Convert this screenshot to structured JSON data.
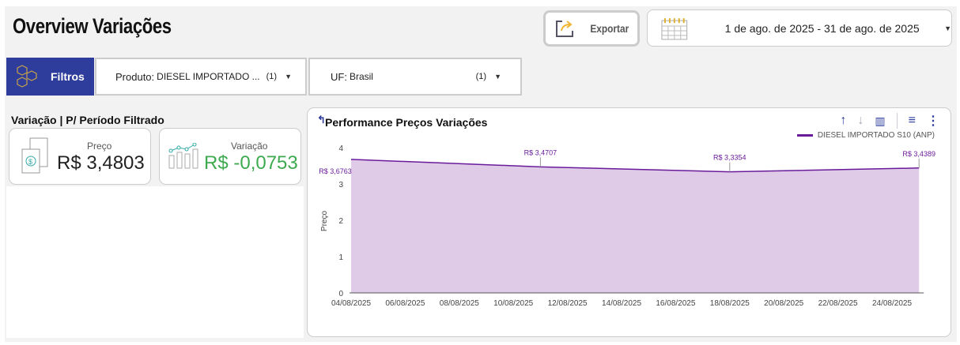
{
  "header": {
    "title": "Overview Variações",
    "export_label": "Exportar",
    "date_range": "1 de ago. de 2025 - 31 de ago. de 2025"
  },
  "filters": {
    "label": "Filtros",
    "produto": {
      "key": "Produto:",
      "value": "DIESEL IMPORTADO ...",
      "count": "(1)"
    },
    "uf": {
      "key": "UF:",
      "value": "Brasil",
      "count": "(1)"
    }
  },
  "summary": {
    "title": "Variação | P/ Período Filtrado",
    "preco": {
      "label": "Preço",
      "value": "R$ 3,4803"
    },
    "variacao": {
      "label": "Variação",
      "value": "R$ -0,0753",
      "color": "#3daa4f"
    }
  },
  "chart": {
    "title": "Performance Preços Variações"
  },
  "chart_data": {
    "type": "area",
    "ylabel": "Preço",
    "xlabel": "",
    "ylim": [
      0,
      4
    ],
    "yticks": [
      "0",
      "1",
      "2",
      "3",
      "4"
    ],
    "xticks": [
      "04/08/2025",
      "06/08/2025",
      "08/08/2025",
      "10/08/2025",
      "12/08/2025",
      "14/08/2025",
      "16/08/2025",
      "18/08/2025",
      "20/08/2025",
      "22/08/2025",
      "24/08/2025"
    ],
    "series": [
      {
        "name": "DIESEL IMPORTADO S10 (ANP)",
        "color": "#6a1b9a",
        "fill": "#dfcbe8",
        "x": [
          "04/08/2025",
          "11/08/2025",
          "18/08/2025",
          "25/08/2025"
        ],
        "values": [
          3.6763,
          3.4707,
          3.3354,
          3.4389
        ],
        "labels": [
          "R$ 3,6763",
          "R$ 3,4707",
          "R$ 3,3354",
          "R$ 3,4389"
        ]
      }
    ],
    "legend": "top-right",
    "grid": false
  }
}
